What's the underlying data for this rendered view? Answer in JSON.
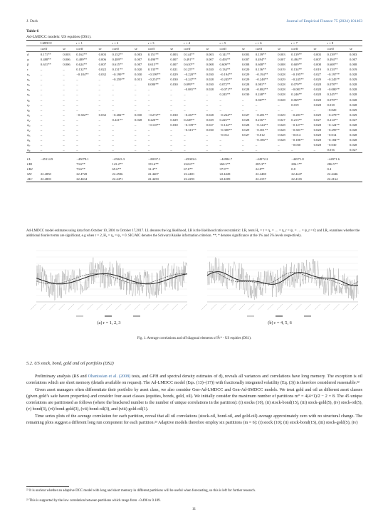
{
  "header": {
    "left": "J. Dark",
    "right": "Journal of Empirical Finance 75 (2024) 101463"
  },
  "table": {
    "title": "Table 6",
    "subtitle": "Ad-LMDCC models: US equities (DS1).",
    "head1": [
      "LMDCC",
      "",
      "r = 1",
      "",
      "r = 2",
      "",
      "r = 3",
      "",
      "r = 4",
      "",
      "r = 5",
      "",
      "r = 6",
      "",
      "r = 7",
      "",
      "r = 8",
      ""
    ],
    "head2": [
      "coeff",
      "se",
      "coeff",
      "se",
      "coeff",
      "se",
      "coeff",
      "se",
      "coeff",
      "se",
      "coeff",
      "se",
      "coeff",
      "se",
      "coeff",
      "se",
      "coeff",
      "se"
    ],
    "coef_rows": [
      {
        "label": "d",
        "cells": [
          "0.171**",
          "0.003",
          "0.162**",
          "0.003",
          "0.152**",
          "0.003",
          "0.151**",
          "0.003",
          "0.144**",
          "0.003",
          "0.141**",
          "0.003",
          "0.139**",
          "0.003",
          "0.139**",
          "0.003",
          "0.139**",
          "0.003"
        ]
      },
      {
        "label": "φ",
        "cells": [
          "0.488**",
          "0.006",
          "0.489**",
          "0.006",
          "0.489**",
          "0.007",
          "0.490**",
          "0.007",
          "0.491**",
          "0.007",
          "0.493**",
          "0.007",
          "0.494**",
          "0.007",
          "0.494**",
          "0.007",
          "0.494**",
          "0.007"
        ]
      },
      {
        "label": "β",
        "cells": [
          "0.631**",
          "0.006",
          "0.624**",
          "0.007",
          "0.615**",
          "0.007",
          "0.615**",
          "0.007",
          "0.610**",
          "0.008",
          "0.609**",
          "0.008",
          "0.608**",
          "0.008",
          "0.609**",
          "0.008",
          "0.608**",
          "0.008"
        ]
      },
      {
        "label": "τ",
        "cells": [
          "–",
          "–",
          "0.132**",
          "0.022",
          "0.131**",
          "0.020",
          "0.135**",
          "0.021",
          "0.125**",
          "0.020",
          "0.134**",
          "0.020",
          "0.136**",
          "0.019",
          "0.134**",
          "0.019",
          "0.133**",
          "0.019"
        ]
      },
      {
        "label": "η₁",
        "cells": [
          "–",
          "–",
          "−0.184**",
          "0.032",
          "−0.199**",
          "0.030",
          "−0.199**",
          "0.029",
          "−0.220**",
          "0.030",
          "−0.194**",
          "0.029",
          "−0.194**",
          "0.028",
          "−0.195**",
          "0.027",
          "−0.197**",
          "0.028"
        ]
      },
      {
        "label": "η₂",
        "cells": [
          "–",
          "–",
          "–",
          "–",
          "−0.259**",
          "0.031",
          "−0.251**",
          "0.030",
          "−0.247**",
          "0.028",
          "−0.245**",
          "0.029",
          "−0.248**",
          "0.029",
          "−0.245**",
          "0.029",
          "−0.245**",
          "0.029"
        ]
      },
      {
        "label": "η₃",
        "cells": [
          "–",
          "–",
          "–",
          "–",
          "–",
          "–",
          "0.080**",
          "0.030",
          "0.099**",
          "0.030",
          "0.072**",
          "0.028",
          "0.081**",
          "0.028",
          "0.079**",
          "0.028",
          "0.078**",
          "0.028"
        ]
      },
      {
        "label": "η₄",
        "cells": [
          "–",
          "–",
          "–",
          "–",
          "–",
          "–",
          "–",
          "–",
          "−0.081**",
          "0.028",
          "−0.071**",
          "0.028",
          "−0.082**",
          "0.028",
          "−0.081**",
          "0.028",
          "−0.080**",
          "0.028"
        ]
      },
      {
        "label": "η₅",
        "cells": [
          "–",
          "–",
          "–",
          "–",
          "–",
          "–",
          "–",
          "–",
          "–",
          "–",
          "0.245**",
          "0.030",
          "0.248**",
          "0.028",
          "0.246**",
          "0.028",
          "0.245**",
          "0.028"
        ]
      },
      {
        "label": "η₆",
        "cells": [
          "–",
          "–",
          "–",
          "–",
          "–",
          "–",
          "–",
          "–",
          "–",
          "–",
          "–",
          "–",
          "0.067**",
          "0.028",
          "0.069**",
          "0.028",
          "0.070**",
          "0.028"
        ]
      },
      {
        "label": "η₇",
        "cells": [
          "–",
          "–",
          "–",
          "–",
          "–",
          "–",
          "–",
          "–",
          "–",
          "–",
          "–",
          "–",
          "–",
          "–",
          "0.019",
          "0.028",
          "0.018",
          "0.028"
        ]
      },
      {
        "label": "η₈",
        "cells": [
          "–",
          "–",
          "–",
          "–",
          "–",
          "–",
          "–",
          "–",
          "–",
          "–",
          "–",
          "–",
          "–",
          "–",
          "–",
          "–",
          "−0.020",
          "0.029"
        ]
      },
      {
        "label": "ψ₁",
        "cells": [
          "–",
          "–",
          "−0.302**",
          "0.032",
          "−0.282**",
          "0.030",
          "−0.274**",
          "0.030",
          "−0.267**",
          "0.028",
          "−0.264**",
          "0.027",
          "−0.281**",
          "0.029",
          "−0.281**",
          "0.029",
          "−0.278**",
          "0.029"
        ]
      },
      {
        "label": "ψ₂",
        "cells": [
          "–",
          "–",
          "–",
          "–",
          "0.221**",
          "0.028",
          "0.220**",
          "0.029",
          "0.248**",
          "0.029",
          "0.225**",
          "0.028",
          "0.216**",
          "0.027",
          "0.213**",
          "0.027",
          "0.214**",
          "0.027"
        ]
      },
      {
        "label": "ψ₃",
        "cells": [
          "–",
          "–",
          "–",
          "–",
          "–",
          "–",
          "−0.118**",
          "0.030",
          "−0.109**",
          "0.027",
          "−0.122**",
          "0.028",
          "−0.124**",
          "0.028",
          "−0.127**",
          "0.028",
          "−0.124**",
          "0.028"
        ]
      },
      {
        "label": "ψ₄",
        "cells": [
          "–",
          "–",
          "–",
          "–",
          "–",
          "–",
          "–",
          "–",
          "−0.315**",
          "0.030",
          "−0.308**",
          "0.029",
          "−0.301**",
          "0.028",
          "−0.301**",
          "0.028",
          "−0.299**",
          "0.028"
        ]
      },
      {
        "label": "ψ₅",
        "cells": [
          "–",
          "–",
          "–",
          "–",
          "–",
          "–",
          "–",
          "–",
          "–",
          "–",
          "−0.012",
          "0.027",
          "−0.012",
          "0.028",
          "−0.014",
          "0.028",
          "−0.014",
          "0.028"
        ]
      },
      {
        "label": "ψ₆",
        "cells": [
          "–",
          "–",
          "–",
          "–",
          "–",
          "–",
          "–",
          "–",
          "–",
          "–",
          "–",
          "–",
          "−0.186**",
          "0.028",
          "−0.186**",
          "0.028",
          "−0.184**",
          "0.028"
        ]
      },
      {
        "label": "ψ₇",
        "cells": [
          "–",
          "–",
          "–",
          "–",
          "–",
          "–",
          "–",
          "–",
          "–",
          "–",
          "–",
          "–",
          "–",
          "–",
          "−0.030",
          "0.028",
          "−0.030",
          "0.028"
        ]
      },
      {
        "label": "ψ₈",
        "cells": [
          "–",
          "–",
          "–",
          "–",
          "–",
          "–",
          "–",
          "–",
          "–",
          "–",
          "–",
          "–",
          "–",
          "–",
          "–",
          "–",
          "0.016",
          "0.027"
        ]
      }
    ],
    "stat_rows": [
      {
        "label": "LL",
        "cells": [
          "−45114.9",
          "",
          "−45078.1",
          "",
          "−45043.3",
          "",
          "−45037.1",
          "",
          "−45003.6",
          "",
          "−44984.7",
          "",
          "−44972.2",
          "",
          "−44971.8",
          "",
          "−44971.6",
          ""
        ]
      },
      {
        "label": "LR1",
        "cells": [
          "",
          "",
          "73.6**",
          "",
          "143.2**",
          "",
          "155.6**",
          "",
          "222.6**",
          "",
          "260.5**",
          "",
          "285.3**",
          "",
          "286.1**",
          "",
          "286.5**",
          ""
        ]
      },
      {
        "label": "LR2",
        "cells": [
          "",
          "",
          "73.6**",
          "",
          "69.6**",
          "",
          "12.4**",
          "",
          "67.0**",
          "",
          "37.9**",
          "",
          "24.8**",
          "",
          "0.8",
          "",
          "0.4",
          ""
        ]
      },
      {
        "label": "SIC",
        "cells": [
          "22.4850",
          "",
          "22.4728",
          "",
          "22.4596",
          "",
          "22.4607",
          "",
          "22.4481",
          "",
          "22.4428",
          "",
          "22.4408",
          "",
          "22.4447",
          "",
          "22.4446",
          ""
        ]
      },
      {
        "label": "AIC",
        "cells": [
          "22.4803",
          "",
          "22.4634",
          "",
          "22.4471",
          "",
          "22.4450",
          "",
          "22.4293",
          "",
          "22.4209",
          "",
          "22.4157",
          "",
          "22.4165",
          "",
          "22.4164",
          ""
        ]
      }
    ],
    "note": "Ad-LMDCC model estimates using data from October 10, 2001 to October 17,2017. LL denotes the log likelihood, LR is the likelihood ratio test statistic: LR₁ tests H₀ = τ = η₁ = … = η_r = ψ₁ = … = ψ_r = 0; and LR₂ examines whether the additional fourier terms are significant, e.g when r = 2, H₀ = η₂ = ψ₂ = 0. SIC/AIC denotes the Schwarz/Akaike information criterion. **, * denotes significance at the 1% and 5% levels respectively."
  },
  "figure": {
    "left_label": "(a) r = 1, 2, 3",
    "right_label": "(b) r = 4, 5, 6",
    "caption": "Fig. 1.  Average correlations and off diagonal elements of P̄ₜ* - US equities (DS1).",
    "colors": {
      "gray_series": "#9a9a9a",
      "line1": "#222222",
      "line2": "#555555"
    }
  },
  "section": {
    "title": "5.2.  US stock, bond, gold and oil portfolio (DS2)"
  },
  "paragraphs": [
    {
      "a": "Preliminary analysis (RS and ",
      "link": "Ohanissian et al. (2008)",
      "b": " tests, and GPH and spectral density estimates of d), reveals all variances and correlations have long memory. The exception is oil correlations which are short memory (details available on request). The Ad-LMDCC model (Eqs. (13)–(17)) with fractionally integrated volatility (Eq. (3)) is therefore considered reasonable.²²"
    },
    {
      "a": "Given asset managers often differentiate their portfolio by asset class, we also consider Gen-Ad-LMDCC and Gen-Ad-SMDCC models. We treat gold and oil as different asset classes (given gold’s safe haven properties) and consider four asset classes (equities, bonds, gold, oil). We initially consider the maximum number of partitions m° = 4(4+1)/2 − 2 = 8. The 45 unique correlations are partitioned as follows (where the bracketed number is the number of unique correlations in the partition): (i) stocks (10), (ii) stock-bond(15), (iii) stock-gold(5), (iv) stock-oil(5), (v) bond(3), (vi) bond-gold(3), (vii) bond-oil(3), and (viii) gold-oil(1).",
      "link": "",
      "b": ""
    },
    {
      "a": "Time series plots of the average correlation for each partition, reveal that all oil correlations (stock-oil, bond-oil, and gold-oil) average approximately zero with no structural change. The remaining plots suggest a different long run component for each partition.²³ Adaptive models therefore employ six partitions (m = 6): (i) stock (10); (ii) stock-bond(15), (iii) stock-gold(5), (iv)",
      "link": "",
      "b": ""
    }
  ],
  "footnotes": [
    "²² It is unclear whether an adaptive DCC model with long and short memory in different partitions will be useful when forecasting, so this is left for further research.",
    "²³ This is supported by the low correlation between partitions which range from −0.496 to 0.189."
  ],
  "page_number": "11"
}
